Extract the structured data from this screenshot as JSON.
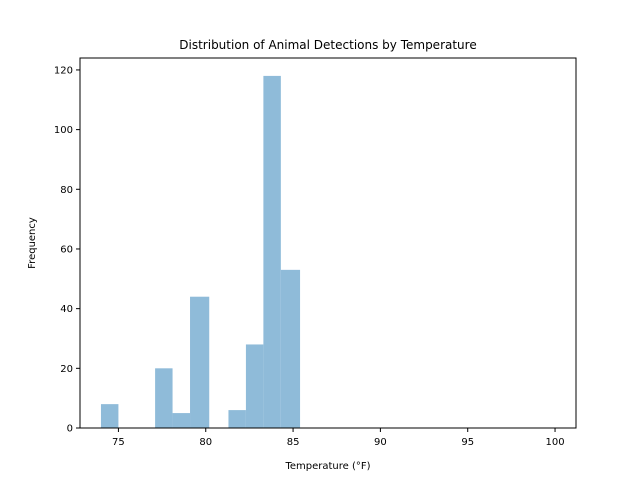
{
  "chart_data": {
    "type": "bar",
    "title": "Distribution of Animal Detections by Temperature",
    "xlabel": "Temperature (°F)",
    "ylabel": "Frequency",
    "xlim": [
      72.8,
      101.2
    ],
    "ylim": [
      0,
      124
    ],
    "xticks": [
      75,
      80,
      85,
      90,
      95,
      100
    ],
    "yticks": [
      0,
      20,
      40,
      60,
      80,
      100,
      120
    ],
    "grid": false,
    "bar_color": "#8fbbd9",
    "bins": [
      {
        "start": 74.0,
        "end": 75.0,
        "count": 8
      },
      {
        "start": 77.1,
        "end": 78.1,
        "count": 20
      },
      {
        "start": 78.1,
        "end": 79.1,
        "count": 5
      },
      {
        "start": 79.1,
        "end": 80.2,
        "count": 44
      },
      {
        "start": 81.3,
        "end": 82.3,
        "count": 6
      },
      {
        "start": 82.3,
        "end": 83.3,
        "count": 28
      },
      {
        "start": 83.3,
        "end": 84.3,
        "count": 118
      },
      {
        "start": 84.3,
        "end": 85.4,
        "count": 53
      }
    ]
  }
}
